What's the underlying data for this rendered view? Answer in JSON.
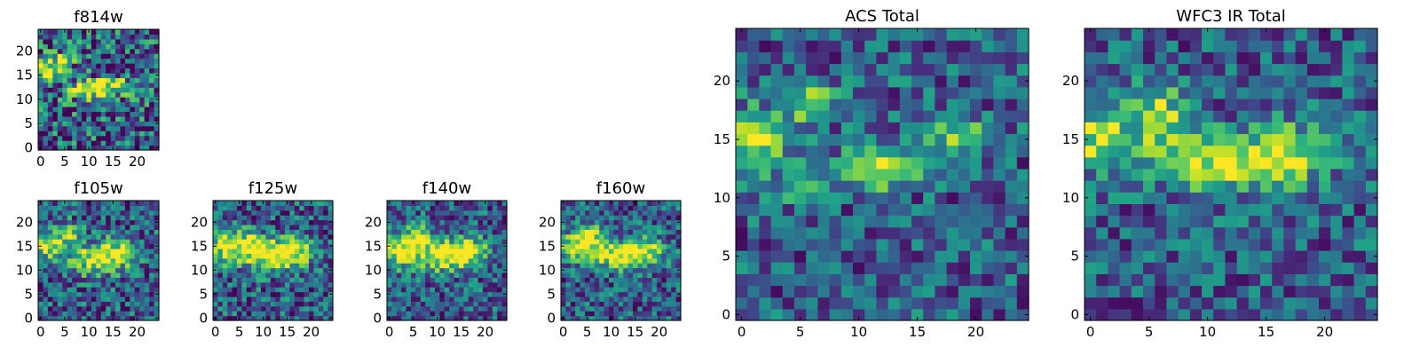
{
  "chart_data": [
    {
      "type": "heatmap",
      "title": "f814w",
      "x_ticks": [
        0,
        5,
        10,
        15,
        20
      ],
      "y_ticks": [
        0,
        5,
        10,
        15,
        20
      ],
      "xlim": [
        0,
        25
      ],
      "ylim": [
        0,
        25
      ],
      "colormap": "viridis",
      "grid": false,
      "seed": 11,
      "noise": 0.42,
      "features": [
        {
          "cx": 1,
          "cy": 16,
          "sx": 1.8,
          "sy": 1.8,
          "a": 0.7
        },
        {
          "cx": 5,
          "cy": 18,
          "sx": 1.5,
          "sy": 1.2,
          "a": 0.5
        },
        {
          "cx": 10,
          "cy": 12,
          "sx": 3.5,
          "sy": 1.3,
          "a": 0.6
        },
        {
          "cx": 15,
          "cy": 13,
          "sx": 3,
          "sy": 1.3,
          "a": 0.5
        }
      ]
    },
    {
      "type": "heatmap",
      "title": "f105w",
      "x_ticks": [
        0,
        5,
        10,
        15,
        20
      ],
      "y_ticks": [
        0,
        5,
        10,
        15,
        20
      ],
      "xlim": [
        0,
        25
      ],
      "ylim": [
        0,
        25
      ],
      "colormap": "viridis",
      "grid": false,
      "seed": 23,
      "noise": 0.32,
      "features": [
        {
          "cx": 1,
          "cy": 15,
          "sx": 2.2,
          "sy": 2,
          "a": 0.55
        },
        {
          "cx": 6,
          "cy": 17,
          "sx": 2,
          "sy": 2,
          "a": 0.45
        },
        {
          "cx": 11,
          "cy": 12,
          "sx": 4,
          "sy": 2,
          "a": 0.6
        },
        {
          "cx": 16,
          "cy": 14,
          "sx": 3,
          "sy": 2,
          "a": 0.5
        }
      ]
    },
    {
      "type": "heatmap",
      "title": "f125w",
      "x_ticks": [
        0,
        5,
        10,
        15,
        20
      ],
      "y_ticks": [
        0,
        5,
        10,
        15,
        20
      ],
      "xlim": [
        0,
        25
      ],
      "ylim": [
        0,
        25
      ],
      "colormap": "viridis",
      "grid": false,
      "seed": 37,
      "noise": 0.32,
      "features": [
        {
          "cx": 2,
          "cy": 15,
          "sx": 2.5,
          "sy": 2.3,
          "a": 0.6
        },
        {
          "cx": 7,
          "cy": 16,
          "sx": 2,
          "sy": 2,
          "a": 0.45
        },
        {
          "cx": 11,
          "cy": 13,
          "sx": 4,
          "sy": 2.2,
          "a": 0.6
        },
        {
          "cx": 16,
          "cy": 14,
          "sx": 3,
          "sy": 2.2,
          "a": 0.55
        }
      ]
    },
    {
      "type": "heatmap",
      "title": "f140w",
      "x_ticks": [
        0,
        5,
        10,
        15,
        20
      ],
      "y_ticks": [
        0,
        5,
        10,
        15,
        20
      ],
      "xlim": [
        0,
        25
      ],
      "ylim": [
        0,
        25
      ],
      "colormap": "viridis",
      "grid": false,
      "seed": 53,
      "noise": 0.3,
      "features": [
        {
          "cx": 2,
          "cy": 14,
          "sx": 2.5,
          "sy": 2.3,
          "a": 0.65
        },
        {
          "cx": 6,
          "cy": 17,
          "sx": 2,
          "sy": 2,
          "a": 0.5
        },
        {
          "cx": 11,
          "cy": 13,
          "sx": 4,
          "sy": 2.2,
          "a": 0.65
        },
        {
          "cx": 17,
          "cy": 14,
          "sx": 3,
          "sy": 2,
          "a": 0.55
        }
      ]
    },
    {
      "type": "heatmap",
      "title": "f160w",
      "x_ticks": [
        0,
        5,
        10,
        15,
        20
      ],
      "y_ticks": [
        0,
        5,
        10,
        15,
        20
      ],
      "xlim": [
        0,
        25
      ],
      "ylim": [
        0,
        25
      ],
      "colormap": "viridis",
      "grid": false,
      "seed": 71,
      "noise": 0.3,
      "features": [
        {
          "cx": 2,
          "cy": 15,
          "sx": 2.5,
          "sy": 2,
          "a": 0.6
        },
        {
          "cx": 6,
          "cy": 17,
          "sx": 2,
          "sy": 2,
          "a": 0.5
        },
        {
          "cx": 11,
          "cy": 13,
          "sx": 4,
          "sy": 2,
          "a": 0.65
        },
        {
          "cx": 17,
          "cy": 14,
          "sx": 3,
          "sy": 2,
          "a": 0.55
        }
      ]
    },
    {
      "type": "heatmap",
      "title": "ACS Total",
      "x_ticks": [
        0,
        5,
        10,
        15,
        20
      ],
      "y_ticks": [
        0,
        5,
        10,
        15,
        20
      ],
      "xlim": [
        0,
        25
      ],
      "ylim": [
        0,
        25
      ],
      "colormap": "viridis",
      "grid": false,
      "seed": 89,
      "noise": 0.28,
      "features": [
        {
          "cx": 1,
          "cy": 15,
          "sx": 1.6,
          "sy": 1.8,
          "a": 0.7
        },
        {
          "cx": 6,
          "cy": 18,
          "sx": 1.4,
          "sy": 1.2,
          "a": 0.55
        },
        {
          "cx": 12,
          "cy": 12.5,
          "sx": 3,
          "sy": 1.1,
          "a": 0.6
        },
        {
          "cx": 18,
          "cy": 15,
          "sx": 2.2,
          "sy": 1.3,
          "a": 0.45
        },
        {
          "cx": 5,
          "cy": 11,
          "sx": 2,
          "sy": 1.2,
          "a": 0.3
        }
      ]
    },
    {
      "type": "heatmap",
      "title": "WFC3 IR Total",
      "x_ticks": [
        0,
        5,
        10,
        15,
        20
      ],
      "y_ticks": [
        0,
        5,
        10,
        15,
        20
      ],
      "xlim": [
        0,
        25
      ],
      "ylim": [
        0,
        25
      ],
      "colormap": "viridis",
      "grid": false,
      "seed": 97,
      "noise": 0.27,
      "features": [
        {
          "cx": 1,
          "cy": 15,
          "sx": 1.8,
          "sy": 2,
          "a": 0.6
        },
        {
          "cx": 6,
          "cy": 17,
          "sx": 1.6,
          "sy": 2,
          "a": 0.55
        },
        {
          "cx": 11,
          "cy": 13,
          "sx": 3.5,
          "sy": 1.6,
          "a": 0.65
        },
        {
          "cx": 17,
          "cy": 14,
          "sx": 2.5,
          "sy": 1.8,
          "a": 0.5
        }
      ]
    }
  ]
}
